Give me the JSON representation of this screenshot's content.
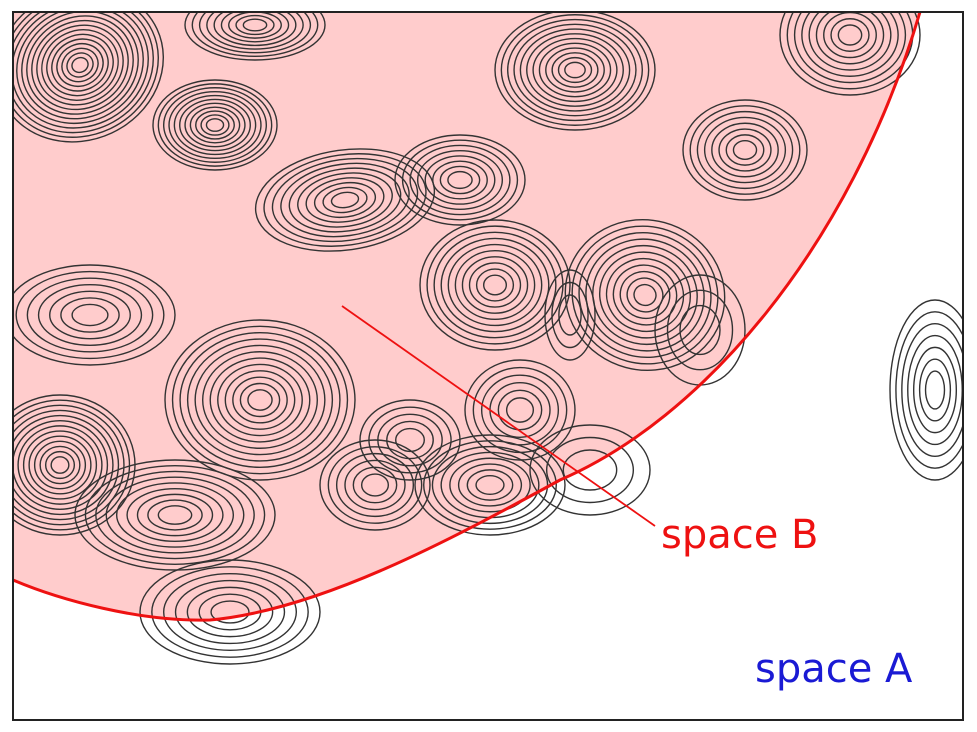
{
  "labels": {
    "space_b": "space B",
    "space_a": "space A"
  },
  "colors": {
    "region_fill": "#ffcccc",
    "region_border": "#ee1111",
    "space_b_text": "#ee1111",
    "space_a_text": "#1a1ad4",
    "contour_stroke": "#333333",
    "frame": "#222222"
  }
}
